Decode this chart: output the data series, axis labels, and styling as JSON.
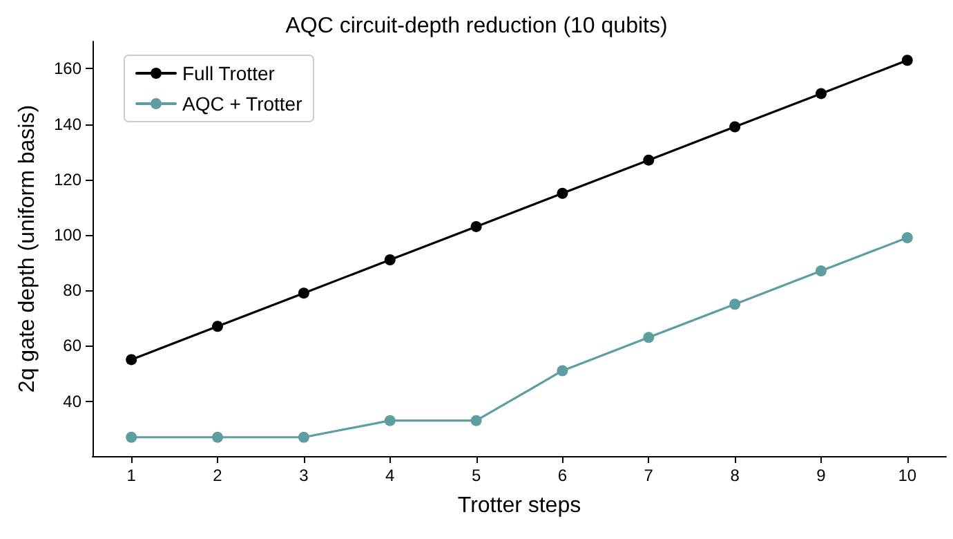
{
  "chart_data": {
    "type": "line",
    "title": "AQC circuit-depth reduction (10 qubits)",
    "xlabel": "Trotter steps",
    "ylabel": "2q gate depth (uniform basis)",
    "x": [
      1,
      2,
      3,
      4,
      5,
      6,
      7,
      8,
      9,
      10
    ],
    "series": [
      {
        "name": "Full Trotter",
        "color": "#000000",
        "values": [
          55,
          67,
          79,
          91,
          103,
          115,
          127,
          139,
          151,
          163
        ]
      },
      {
        "name": "AQC + Trotter",
        "color": "#5f9ea0",
        "values": [
          27,
          27,
          27,
          33,
          33,
          51,
          63,
          75,
          87,
          99
        ]
      }
    ],
    "xlim": [
      0.55,
      10.45
    ],
    "xticks": [
      1,
      2,
      3,
      4,
      5,
      6,
      7,
      8,
      9,
      10
    ],
    "ylim": [
      20.2,
      169.8
    ],
    "yticks": [
      40,
      60,
      80,
      100,
      120,
      140,
      160
    ],
    "grid": false,
    "legend": "top left",
    "marker": "circle",
    "line_style": "solid"
  }
}
